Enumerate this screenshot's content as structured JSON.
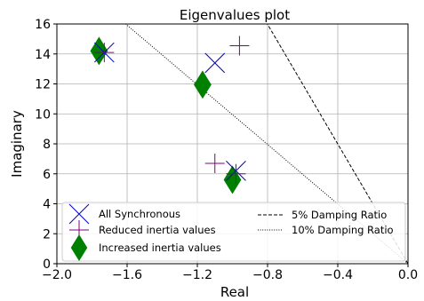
{
  "chart_data": {
    "type": "scatter",
    "title": "Eigenvalues plot",
    "xlabel": "Real",
    "ylabel": "Imaginary",
    "xlim": [
      -2.0,
      0.0
    ],
    "ylim": [
      0,
      16
    ],
    "xticks": [
      -2.0,
      -1.6,
      -1.2,
      -0.8,
      -0.4,
      0.0
    ],
    "xtick_labels": [
      "−2.0",
      "−1.6",
      "−1.2",
      "−0.8",
      "−0.4",
      "0.0"
    ],
    "yticks": [
      0,
      2,
      4,
      6,
      8,
      10,
      12,
      14,
      16
    ],
    "ytick_labels": [
      "0",
      "2",
      "4",
      "6",
      "8",
      "10",
      "12",
      "14",
      "16"
    ],
    "grid": true,
    "legend_position": "bottom-left",
    "series": [
      {
        "name": "All Synchronous",
        "marker": "x",
        "color": "#0000cc",
        "points": [
          {
            "x": -1.73,
            "y": 14.1
          },
          {
            "x": -1.1,
            "y": 13.4
          },
          {
            "x": -0.98,
            "y": 6.2
          }
        ]
      },
      {
        "name": "Reduced inertia values",
        "marker": "plus",
        "color": "#800080",
        "points": [
          {
            "x": -1.73,
            "y": 14.1
          },
          {
            "x": -0.96,
            "y": 14.55
          },
          {
            "x": -1.1,
            "y": 6.7
          },
          {
            "x": -0.98,
            "y": 6.0
          }
        ]
      },
      {
        "name": "Increased inertia values",
        "marker": "diamond",
        "color": "#008000",
        "points": [
          {
            "x": -1.76,
            "y": 14.2
          },
          {
            "x": -1.17,
            "y": 11.95
          },
          {
            "x": -1.0,
            "y": 5.6
          }
        ]
      }
    ],
    "damping_lines": [
      {
        "name": "5% Damping Ratio",
        "style": "dashed",
        "ratio": 0.05
      },
      {
        "name": "10% Damping Ratio",
        "style": "dotted",
        "ratio": 0.1
      }
    ]
  }
}
